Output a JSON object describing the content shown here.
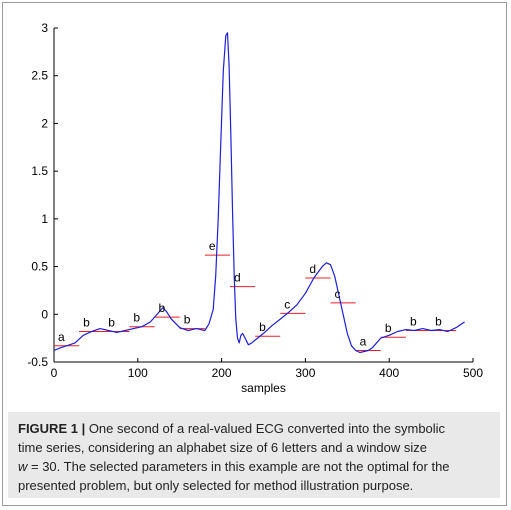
{
  "chart_data": {
    "type": "line",
    "xlabel": "samples",
    "ylabel": "",
    "xlim": [
      0,
      500
    ],
    "ylim": [
      -0.5,
      3
    ],
    "xticks": [
      "0",
      "100",
      "200",
      "300",
      "400",
      "500"
    ],
    "yticks": [
      "-0.5",
      "0",
      "0.5",
      "1",
      "1.5",
      "2",
      "2.5",
      "3"
    ],
    "series": [
      {
        "color": "#1f1fd6",
        "x": [
          0,
          8,
          15,
          25,
          35,
          45,
          55,
          65,
          75,
          85,
          95,
          105,
          115,
          125,
          130,
          135,
          140,
          150,
          160,
          170,
          180,
          185,
          190,
          193,
          196,
          199,
          202,
          205,
          207,
          209,
          211,
          213,
          215,
          217,
          219,
          221,
          223,
          225,
          228,
          232,
          236,
          240,
          250,
          260,
          270,
          280,
          290,
          300,
          310,
          320,
          325,
          330,
          335,
          340,
          345,
          350,
          355,
          360,
          365,
          370,
          375,
          380,
          390,
          400,
          410,
          420,
          430,
          440,
          450,
          460,
          470,
          480,
          490
        ],
        "y": [
          -0.38,
          -0.35,
          -0.33,
          -0.3,
          -0.22,
          -0.18,
          -0.15,
          -0.17,
          -0.19,
          -0.17,
          -0.15,
          -0.13,
          -0.08,
          0.02,
          0.07,
          0.02,
          -0.05,
          -0.14,
          -0.17,
          -0.15,
          -0.17,
          -0.1,
          0.05,
          0.4,
          1.0,
          1.8,
          2.55,
          2.92,
          2.95,
          2.6,
          1.9,
          1.1,
          0.4,
          -0.05,
          -0.25,
          -0.3,
          -0.22,
          -0.2,
          -0.25,
          -0.32,
          -0.3,
          -0.27,
          -0.2,
          -0.12,
          -0.05,
          0.02,
          0.1,
          0.22,
          0.38,
          0.5,
          0.54,
          0.52,
          0.4,
          0.2,
          0.0,
          -0.2,
          -0.33,
          -0.38,
          -0.4,
          -0.39,
          -0.38,
          -0.35,
          -0.25,
          -0.22,
          -0.18,
          -0.16,
          -0.17,
          -0.15,
          -0.17,
          -0.16,
          -0.18,
          -0.14,
          -0.08
        ]
      }
    ],
    "segments": [
      {
        "x1": 0,
        "x2": 30,
        "y": -0.33,
        "label": "a"
      },
      {
        "x1": 30,
        "x2": 60,
        "y": -0.18,
        "label": "b"
      },
      {
        "x1": 60,
        "x2": 90,
        "y": -0.18,
        "label": "b"
      },
      {
        "x1": 90,
        "x2": 120,
        "y": -0.13,
        "label": "b"
      },
      {
        "x1": 120,
        "x2": 150,
        "y": -0.03,
        "label": "b"
      },
      {
        "x1": 150,
        "x2": 180,
        "y": -0.15,
        "label": "b"
      },
      {
        "x1": 180,
        "x2": 210,
        "y": 0.62,
        "label": "e"
      },
      {
        "x1": 210,
        "x2": 240,
        "y": 0.29,
        "label": "d"
      },
      {
        "x1": 240,
        "x2": 270,
        "y": -0.23,
        "label": "b"
      },
      {
        "x1": 270,
        "x2": 300,
        "y": 0.01,
        "label": "c"
      },
      {
        "x1": 300,
        "x2": 330,
        "y": 0.38,
        "label": "d"
      },
      {
        "x1": 330,
        "x2": 360,
        "y": 0.12,
        "label": "c"
      },
      {
        "x1": 360,
        "x2": 390,
        "y": -0.38,
        "label": "a"
      },
      {
        "x1": 390,
        "x2": 420,
        "y": -0.24,
        "label": "b"
      },
      {
        "x1": 420,
        "x2": 450,
        "y": -0.17,
        "label": "b"
      },
      {
        "x1": 450,
        "x2": 480,
        "y": -0.17,
        "label": "b"
      }
    ],
    "segment_color": "#e8202a"
  },
  "caption": {
    "prefix": "FIGURE 1 |",
    "line1": " One second of a real-valued ECG converted into the symbolic",
    "line2": "time series, considering an alphabet size of 6 letters and a window size",
    "var": "w",
    "line3": " = 30. The selected parameters in this example are not the optimal for the",
    "line4": "presented problem, but only selected for method illustration purpose."
  }
}
